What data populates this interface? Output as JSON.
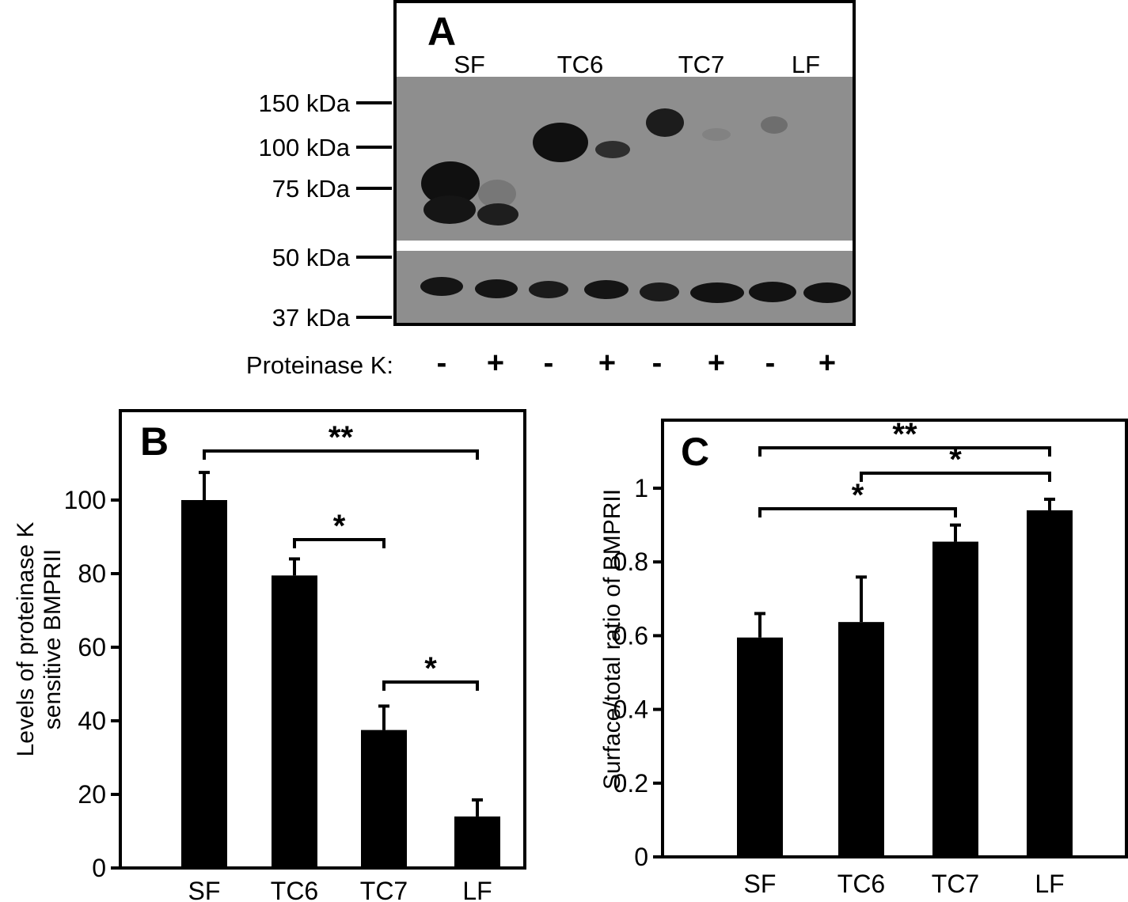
{
  "chart_data": [
    {
      "type": "western-blot",
      "panel_label": "A",
      "lanes": [
        "SF",
        "TC6",
        "TC7",
        "LF"
      ],
      "markers": [
        "150 kDa",
        "100 kDa",
        "75 kDa",
        "50 kDa",
        "37 kDa"
      ],
      "treatment_label": "Proteinase K:",
      "treatment_signs": [
        "-",
        "+",
        "-",
        "+",
        "-",
        "+",
        "-",
        "+"
      ]
    },
    {
      "type": "bar",
      "panel_label": "B",
      "categories": [
        "SF",
        "TC6",
        "TC7",
        "LF"
      ],
      "values": [
        100,
        79.5,
        37.5,
        14
      ],
      "errors": [
        7.5,
        4.5,
        6.5,
        4.5
      ],
      "ylabel": "Levels of proteinase K sensitive BMPRII",
      "ylabel_lines": [
        "Levels of proteinase K",
        "sensitive BMPRII"
      ],
      "ylim": [
        0,
        120
      ],
      "yticks": [
        0,
        20,
        40,
        60,
        80,
        100
      ],
      "significance": [
        {
          "from": 0,
          "to": 3,
          "label": "**"
        },
        {
          "from": 1,
          "to": 2,
          "label": "*"
        },
        {
          "from": 2,
          "to": 3,
          "label": "*"
        }
      ]
    },
    {
      "type": "bar",
      "panel_label": "C",
      "categories": [
        "SF",
        "TC6",
        "TC7",
        "LF"
      ],
      "values": [
        0.595,
        0.637,
        0.855,
        0.94
      ],
      "errors": [
        0.065,
        0.122,
        0.045,
        0.03
      ],
      "ylabel": "Surface/total ratio of BMPRII",
      "ylim": [
        0,
        1.15
      ],
      "yticks": [
        0,
        0.2,
        0.4,
        0.6,
        0.8,
        1
      ],
      "ytick_labels": [
        "0",
        "0.2",
        "0.4",
        "0.6",
        "0.8",
        "1"
      ],
      "significance": [
        {
          "from": 0,
          "to": 3,
          "label": "**"
        },
        {
          "from": 1,
          "to": 3,
          "label": "*"
        },
        {
          "from": 0,
          "to": 2,
          "label": "*"
        }
      ]
    }
  ]
}
